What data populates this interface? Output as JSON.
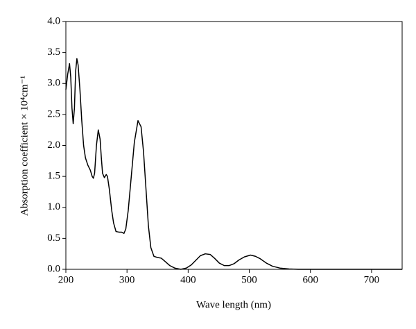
{
  "chart_data": {
    "type": "line",
    "xlabel": "Wave length (nm)",
    "ylabel": "Absorption coefficient × 10⁴cm⁻¹",
    "x": [
      200,
      203,
      206,
      208,
      210,
      212,
      214,
      216,
      218,
      220,
      223,
      226,
      229,
      232,
      236,
      240,
      243,
      245,
      247,
      250,
      253,
      256,
      258,
      260,
      263,
      266,
      268,
      271,
      275,
      278,
      282,
      287,
      291,
      295,
      298,
      302,
      307,
      312,
      318,
      323,
      327,
      331,
      335,
      339,
      344,
      350,
      356,
      362,
      370,
      378,
      388,
      397,
      405,
      413,
      420,
      428,
      436,
      443,
      451,
      459,
      467,
      475,
      483,
      492,
      502,
      510,
      518,
      528,
      538,
      550,
      565,
      580,
      650,
      750
    ],
    "series": [
      {
        "color": "#000000",
        "values": [
          2.9,
          3.15,
          3.32,
          3.1,
          2.6,
          2.35,
          2.6,
          3.2,
          3.4,
          3.3,
          2.9,
          2.4,
          2.0,
          1.8,
          1.68,
          1.6,
          1.5,
          1.47,
          1.55,
          2.0,
          2.25,
          2.1,
          1.8,
          1.55,
          1.48,
          1.53,
          1.5,
          1.3,
          0.95,
          0.75,
          0.61,
          0.6,
          0.6,
          0.58,
          0.65,
          0.95,
          1.5,
          2.05,
          2.4,
          2.3,
          1.9,
          1.3,
          0.7,
          0.35,
          0.21,
          0.19,
          0.18,
          0.13,
          0.06,
          0.02,
          0.0,
          0.02,
          0.07,
          0.15,
          0.22,
          0.25,
          0.24,
          0.18,
          0.1,
          0.06,
          0.06,
          0.09,
          0.15,
          0.2,
          0.23,
          0.21,
          0.17,
          0.1,
          0.05,
          0.02,
          0.005,
          0,
          0,
          0
        ]
      }
    ],
    "xlim": [
      200,
      750
    ],
    "xticks": [
      200,
      300,
      400,
      500,
      600,
      700
    ],
    "ylim": [
      0,
      4
    ],
    "yticks": [
      {
        "value": 0,
        "label": "0.0"
      },
      {
        "value": 0.5,
        "label": "0.5"
      },
      {
        "value": 1,
        "label": "1.0"
      },
      {
        "value": 1.5,
        "label": "1.5"
      },
      {
        "value": 2,
        "label": "2.0"
      },
      {
        "value": 2.5,
        "label": "2.5"
      },
      {
        "value": 3,
        "label": "3.0"
      },
      {
        "value": 3.5,
        "label": "3.5"
      },
      {
        "value": 4,
        "label": "4.0"
      }
    ]
  }
}
